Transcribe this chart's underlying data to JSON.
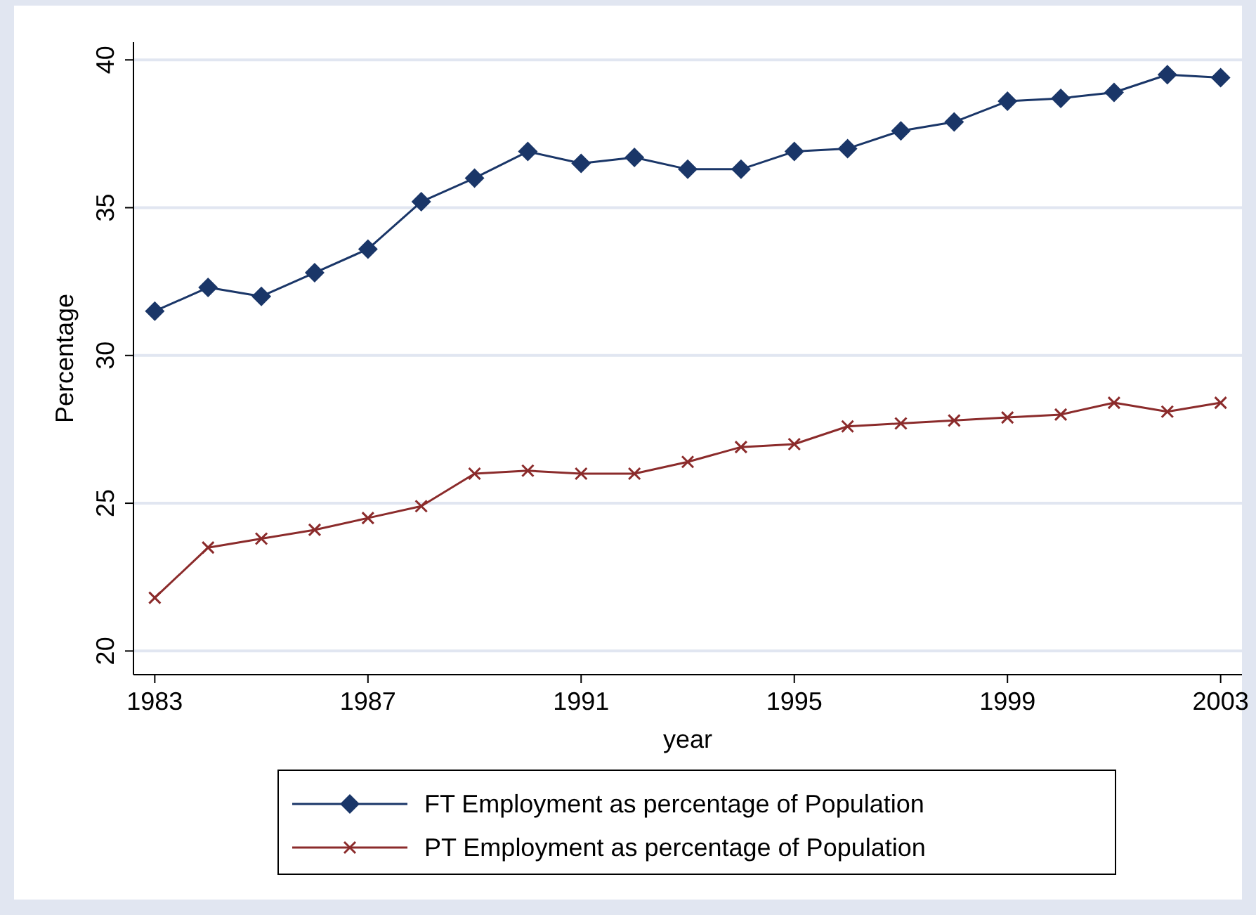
{
  "chart_data": {
    "type": "line",
    "xlabel": "year",
    "ylabel": "Percentage",
    "x": [
      1983,
      1984,
      1985,
      1986,
      1987,
      1988,
      1989,
      1990,
      1991,
      1992,
      1993,
      1994,
      1995,
      1996,
      1997,
      1998,
      1999,
      2000,
      2001,
      2002,
      2003
    ],
    "xlim": [
      1982.6,
      2003.4
    ],
    "xticks": [
      1983,
      1987,
      1991,
      1995,
      1999,
      2003
    ],
    "ylim": [
      19.2,
      40.6
    ],
    "yticks": [
      20,
      25,
      30,
      35,
      40
    ],
    "grid": "y",
    "legend": "bottom",
    "line_style": "solid",
    "series": [
      {
        "name": "FT Employment as percentage of Population",
        "color": "#1a3668",
        "marker": "diamond",
        "values": [
          31.5,
          32.3,
          32.0,
          32.8,
          33.6,
          35.2,
          36.0,
          36.9,
          36.5,
          36.7,
          36.3,
          36.3,
          36.9,
          37.0,
          37.6,
          37.9,
          38.6,
          38.7,
          38.9,
          39.5,
          39.4
        ]
      },
      {
        "name": "PT Employment as percentage of Population",
        "color": "#8b2b2b",
        "marker": "cross",
        "values": [
          21.8,
          23.5,
          23.8,
          24.1,
          24.5,
          24.9,
          26.0,
          26.1,
          26.0,
          26.0,
          26.4,
          26.9,
          27.0,
          27.6,
          27.7,
          27.8,
          27.9,
          28.0,
          28.4,
          28.1,
          28.4
        ]
      }
    ]
  }
}
